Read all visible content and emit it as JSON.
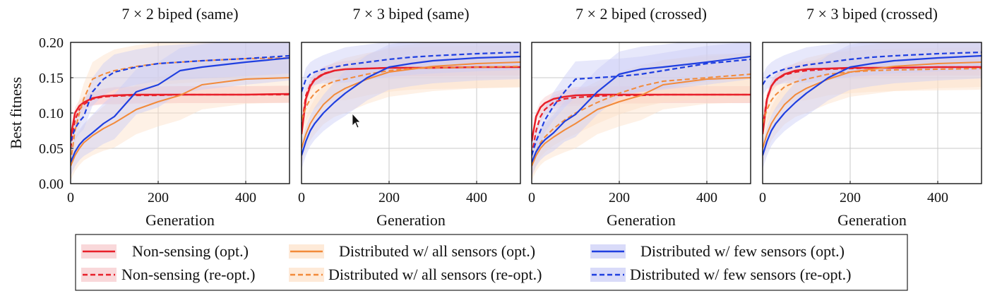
{
  "figure": {
    "ylabel": "Best fitness",
    "xlabel": "Generation"
  },
  "colors": {
    "red": "#e8202a",
    "orange": "#f28a3a",
    "blue": "#1f3fe0",
    "red_band": "#f6c7ca",
    "orange_band": "#fde1c8",
    "blue_band": "#c9ccf7"
  },
  "legend": [
    {
      "label": "Non-sensing (opt.)",
      "color": "#e8202a",
      "dash": false
    },
    {
      "label": "Distributed w/ all sensors (opt.)",
      "color": "#f28a3a",
      "dash": false
    },
    {
      "label": "Distributed w/ few sensors (opt.)",
      "color": "#1f3fe0",
      "dash": false
    },
    {
      "label": "Non-sensing (re-opt.)",
      "color": "#e8202a",
      "dash": true
    },
    {
      "label": "Distributed w/ all sensors (re-opt.)",
      "color": "#f28a3a",
      "dash": true
    },
    {
      "label": "Distributed w/ few sensors (re-opt.)",
      "color": "#1f3fe0",
      "dash": true
    }
  ],
  "chart_data": [
    {
      "type": "line",
      "title": "7 × 2 biped (same)",
      "xlabel": "Generation",
      "ylabel": "Best fitness",
      "xlim": [
        0,
        500
      ],
      "ylim": [
        0,
        0.2
      ],
      "xticks": [
        "0",
        "200",
        "400"
      ],
      "yticks": [
        "0.00",
        "0.05",
        "0.10",
        "0.15",
        "0.20"
      ],
      "grid": true,
      "x": [
        0,
        10,
        20,
        30,
        50,
        75,
        100,
        150,
        200,
        250,
        300,
        400,
        500
      ],
      "series": [
        {
          "name": "Non-sensing (opt.)",
          "values": [
            0.065,
            0.1,
            0.11,
            0.115,
            0.121,
            0.124,
            0.125,
            0.126,
            0.126,
            0.126,
            0.126,
            0.126,
            0.127
          ]
        },
        {
          "name": "Non-sensing (re-opt.)",
          "values": [
            0.05,
            0.09,
            0.105,
            0.112,
            0.12,
            0.123,
            0.124,
            0.125,
            0.125,
            0.126,
            0.126,
            0.126,
            0.126
          ]
        },
        {
          "name": "Distributed w/ all sensors (opt.)",
          "values": [
            0.025,
            0.04,
            0.05,
            0.058,
            0.068,
            0.078,
            0.086,
            0.105,
            0.116,
            0.125,
            0.14,
            0.148,
            0.15
          ]
        },
        {
          "name": "Distributed w/ all sensors (re-opt.)",
          "values": [
            0.03,
            0.075,
            0.1,
            0.12,
            0.148,
            0.155,
            0.16,
            0.166,
            0.17,
            0.172,
            0.174,
            0.177,
            0.178
          ]
        },
        {
          "name": "Distributed w/ few sensors (opt.)",
          "values": [
            0.03,
            0.045,
            0.055,
            0.062,
            0.072,
            0.085,
            0.095,
            0.13,
            0.14,
            0.16,
            0.165,
            0.172,
            0.178
          ]
        },
        {
          "name": "Distributed w/ few sensors (re-opt.)",
          "values": [
            0.06,
            0.078,
            0.088,
            0.095,
            0.13,
            0.148,
            0.158,
            0.165,
            0.17,
            0.172,
            0.174,
            0.177,
            0.181
          ]
        }
      ]
    },
    {
      "type": "line",
      "title": "7 × 3 biped (same)",
      "xlabel": "Generation",
      "ylabel": "",
      "xlim": [
        0,
        500
      ],
      "ylim": [
        0,
        0.2
      ],
      "xticks": [
        "0",
        "200",
        "400"
      ],
      "yticks": [],
      "grid": true,
      "x": [
        0,
        10,
        20,
        30,
        50,
        75,
        100,
        150,
        200,
        250,
        300,
        400,
        500
      ],
      "series": [
        {
          "name": "Non-sensing (opt.)",
          "values": [
            0.07,
            0.12,
            0.138,
            0.147,
            0.155,
            0.16,
            0.162,
            0.163,
            0.164,
            0.164,
            0.164,
            0.165,
            0.165
          ]
        },
        {
          "name": "Non-sensing (re-opt.)",
          "values": [
            0.08,
            0.125,
            0.14,
            0.148,
            0.156,
            0.16,
            0.162,
            0.163,
            0.164,
            0.164,
            0.164,
            0.165,
            0.165
          ]
        },
        {
          "name": "Distributed w/ all sensors (opt.)",
          "values": [
            0.05,
            0.07,
            0.085,
            0.095,
            0.112,
            0.126,
            0.135,
            0.148,
            0.158,
            0.162,
            0.166,
            0.17,
            0.172
          ]
        },
        {
          "name": "Distributed w/ all sensors (re-opt.)",
          "values": [
            0.09,
            0.108,
            0.12,
            0.128,
            0.138,
            0.145,
            0.148,
            0.155,
            0.16,
            0.163,
            0.164,
            0.165,
            0.166
          ]
        },
        {
          "name": "Distributed w/ few sensors (opt.)",
          "values": [
            0.04,
            0.06,
            0.075,
            0.085,
            0.1,
            0.115,
            0.128,
            0.15,
            0.165,
            0.17,
            0.174,
            0.178,
            0.18
          ]
        },
        {
          "name": "Distributed w/ few sensors (re-opt.)",
          "values": [
            0.13,
            0.148,
            0.155,
            0.158,
            0.162,
            0.165,
            0.168,
            0.172,
            0.176,
            0.179,
            0.181,
            0.184,
            0.186
          ]
        }
      ]
    },
    {
      "type": "line",
      "title": "7 × 2 biped (crossed)",
      "xlabel": "Generation",
      "ylabel": "",
      "xlim": [
        0,
        500
      ],
      "ylim": [
        0,
        0.2
      ],
      "xticks": [
        "0",
        "200",
        "400"
      ],
      "yticks": [],
      "grid": true,
      "x": [
        0,
        10,
        20,
        30,
        50,
        75,
        100,
        150,
        200,
        250,
        300,
        400,
        500
      ],
      "series": [
        {
          "name": "Non-sensing (opt.)",
          "values": [
            0.06,
            0.095,
            0.108,
            0.114,
            0.12,
            0.123,
            0.125,
            0.126,
            0.126,
            0.126,
            0.126,
            0.126,
            0.126
          ]
        },
        {
          "name": "Non-sensing (re-opt.)",
          "values": [
            0.04,
            0.075,
            0.095,
            0.105,
            0.115,
            0.12,
            0.122,
            0.124,
            0.125,
            0.125,
            0.126,
            0.126,
            0.126
          ]
        },
        {
          "name": "Distributed w/ all sensors (opt.)",
          "values": [
            0.025,
            0.04,
            0.05,
            0.057,
            0.066,
            0.076,
            0.085,
            0.105,
            0.116,
            0.125,
            0.14,
            0.148,
            0.15
          ]
        },
        {
          "name": "Distributed w/ all sensors (re-opt.)",
          "values": [
            0.025,
            0.045,
            0.058,
            0.066,
            0.078,
            0.09,
            0.1,
            0.115,
            0.128,
            0.138,
            0.145,
            0.15,
            0.155
          ]
        },
        {
          "name": "Distributed w/ few sensors (opt.)",
          "values": [
            0.03,
            0.045,
            0.055,
            0.062,
            0.072,
            0.088,
            0.098,
            0.13,
            0.155,
            0.162,
            0.165,
            0.172,
            0.18
          ]
        },
        {
          "name": "Distributed w/ few sensors (re-opt.)",
          "values": [
            0.04,
            0.06,
            0.075,
            0.09,
            0.11,
            0.13,
            0.148,
            0.15,
            0.152,
            0.155,
            0.16,
            0.17,
            0.176
          ]
        }
      ]
    },
    {
      "type": "line",
      "title": "7 × 3 biped (crossed)",
      "xlabel": "Generation",
      "ylabel": "",
      "xlim": [
        0,
        500
      ],
      "ylim": [
        0,
        0.2
      ],
      "xticks": [
        "0",
        "200",
        "400"
      ],
      "yticks": [],
      "grid": true,
      "x": [
        0,
        10,
        20,
        30,
        50,
        75,
        100,
        150,
        200,
        250,
        300,
        400,
        500
      ],
      "series": [
        {
          "name": "Non-sensing (opt.)",
          "values": [
            0.07,
            0.12,
            0.138,
            0.147,
            0.155,
            0.16,
            0.162,
            0.163,
            0.164,
            0.164,
            0.164,
            0.165,
            0.165
          ]
        },
        {
          "name": "Non-sensing (re-opt.)",
          "values": [
            0.08,
            0.122,
            0.138,
            0.146,
            0.154,
            0.158,
            0.16,
            0.162,
            0.163,
            0.164,
            0.164,
            0.165,
            0.165
          ]
        },
        {
          "name": "Distributed w/ all sensors (opt.)",
          "values": [
            0.05,
            0.07,
            0.085,
            0.095,
            0.112,
            0.126,
            0.135,
            0.148,
            0.158,
            0.162,
            0.166,
            0.17,
            0.172
          ]
        },
        {
          "name": "Distributed w/ all sensors (re-opt.)",
          "values": [
            0.085,
            0.105,
            0.118,
            0.126,
            0.137,
            0.144,
            0.148,
            0.155,
            0.158,
            0.16,
            0.161,
            0.162,
            0.163
          ]
        },
        {
          "name": "Distributed w/ few sensors (opt.)",
          "values": [
            0.04,
            0.06,
            0.075,
            0.085,
            0.1,
            0.115,
            0.128,
            0.15,
            0.165,
            0.17,
            0.174,
            0.178,
            0.181
          ]
        },
        {
          "name": "Distributed w/ few sensors (re-opt.)",
          "values": [
            0.14,
            0.15,
            0.155,
            0.158,
            0.162,
            0.165,
            0.168,
            0.172,
            0.176,
            0.179,
            0.181,
            0.184,
            0.186
          ]
        }
      ]
    }
  ]
}
